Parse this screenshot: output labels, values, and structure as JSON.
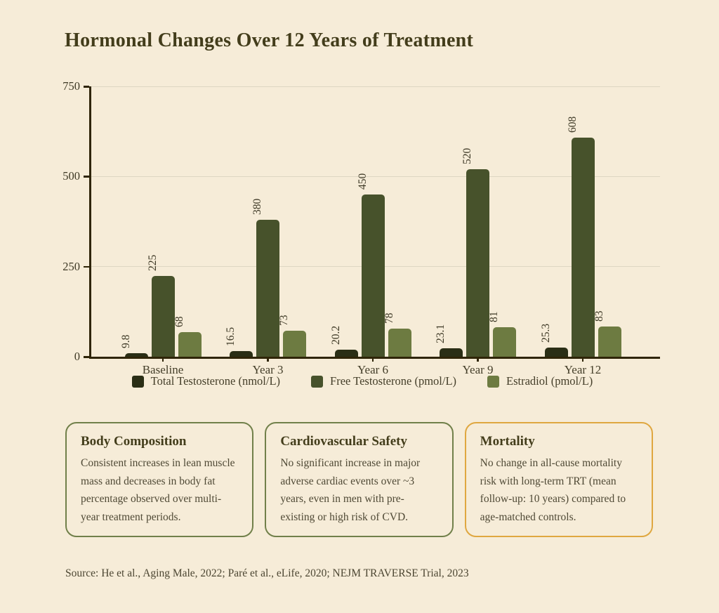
{
  "page": {
    "title": "Hormonal Changes Over 12 Years of Treatment",
    "source": "Source: He et al., Aging Male, 2022; Paré et al., eLife, 2020; NEJM TRAVERSE Trial, 2023"
  },
  "chart_data": {
    "type": "bar",
    "title": "Hormonal Changes Over 12 Years of Treatment",
    "categories": [
      "Baseline",
      "Year 3",
      "Year 6",
      "Year 9",
      "Year 12"
    ],
    "series": [
      {
        "name": "Total Testosterone (nmol/L)",
        "color": "#2a2e15",
        "values": [
          9.8,
          16.5,
          20.2,
          23.1,
          25.3
        ]
      },
      {
        "name": "Free Testosterone (pmol/L)",
        "color": "#47522b",
        "values": [
          225,
          380,
          450,
          520,
          608
        ]
      },
      {
        "name": "Estradiol (pmol/L)",
        "color": "#6d7b41",
        "values": [
          68,
          73,
          78,
          81,
          83
        ]
      }
    ],
    "value_labels": [
      [
        "9.8",
        "16.5",
        "20.2",
        "23.1",
        "25.3"
      ],
      [
        "225",
        "380",
        "450",
        "520",
        "608"
      ],
      [
        "68",
        "73",
        "78",
        "81",
        "83"
      ]
    ],
    "y_ticks": [
      0,
      250,
      500,
      750
    ],
    "ylim": [
      0,
      750
    ],
    "grid": true,
    "value_labels_rotated": true,
    "legend_position": "bottom",
    "colors": {
      "background": "#f6ecd8",
      "axis": "#2f2508",
      "gridline": "#ddd6c2",
      "text": "#4f4935"
    }
  },
  "cards": [
    {
      "title": "Body Composition",
      "body": "Consistent increases in lean muscle mass and decreases in body fat percentage observed over multi-year treatment periods.",
      "border_color": "#71804a"
    },
    {
      "title": "Cardiovascular Safety",
      "body": "No significant increase in major adverse cardiac events over ~3 years, even in men with pre-existing or high risk of CVD.",
      "border_color": "#71804a"
    },
    {
      "title": "Mortality",
      "body": "No change in all-cause mortality risk with long-term TRT (mean follow-up: 10 years) compared to age-matched controls.",
      "border_color": "#dfa740"
    }
  ]
}
